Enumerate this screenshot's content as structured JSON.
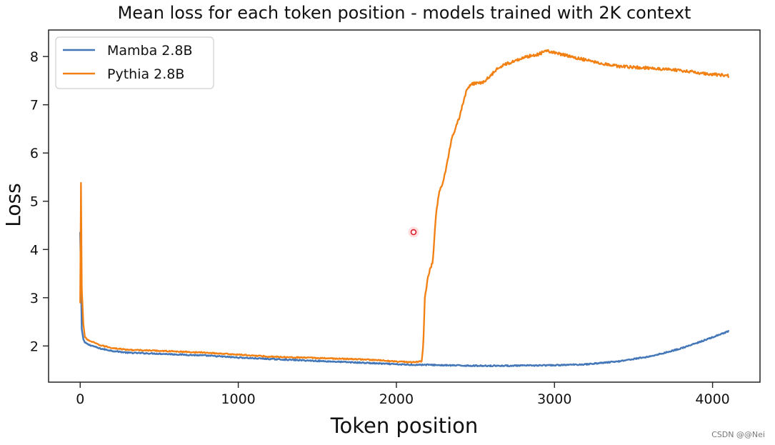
{
  "chart_data": {
    "type": "line",
    "title": "Mean loss for each token position - models trained with 2K context",
    "xlabel": "Token position",
    "ylabel": "Loss",
    "xlim": [
      -200,
      4300
    ],
    "ylim": [
      1.25,
      8.55
    ],
    "xticks": [
      0,
      1000,
      2000,
      3000,
      4000
    ],
    "yticks": [
      2,
      3,
      4,
      5,
      6,
      7,
      8
    ],
    "grid": false,
    "legend_position": "top-left",
    "series": [
      {
        "name": "Mamba 2.8B",
        "color": "#4477b8",
        "x": [
          0,
          10,
          20,
          30,
          50,
          80,
          120,
          200,
          300,
          500,
          800,
          1000,
          1200,
          1500,
          1800,
          2000,
          2100,
          2200,
          2300,
          2500,
          2700,
          3000,
          3200,
          3400,
          3600,
          3700,
          3800,
          3900,
          4000,
          4050,
          4100
        ],
        "y": [
          4.35,
          2.35,
          2.14,
          2.07,
          2.03,
          2.0,
          1.95,
          1.9,
          1.86,
          1.84,
          1.8,
          1.76,
          1.73,
          1.69,
          1.65,
          1.62,
          1.61,
          1.61,
          1.6,
          1.59,
          1.59,
          1.6,
          1.62,
          1.68,
          1.78,
          1.86,
          1.95,
          2.06,
          2.18,
          2.24,
          2.3
        ]
      },
      {
        "name": "Pythia 2.8B",
        "color": "#f28012",
        "x": [
          0,
          5,
          10,
          20,
          30,
          50,
          80,
          120,
          200,
          300,
          500,
          800,
          1000,
          1200,
          1500,
          1800,
          2000,
          2100,
          2160,
          2170,
          2180,
          2200,
          2230,
          2250,
          2270,
          2300,
          2350,
          2400,
          2430,
          2450,
          2470,
          2500,
          2550,
          2600,
          2650,
          2700,
          2800,
          2900,
          2950,
          3000,
          3050,
          3100,
          3200,
          3300,
          3400,
          3500,
          3600,
          3700,
          3800,
          3900,
          4000,
          4100
        ],
        "y": [
          2.9,
          5.38,
          3.2,
          2.45,
          2.18,
          2.12,
          2.08,
          2.02,
          1.96,
          1.92,
          1.9,
          1.86,
          1.82,
          1.78,
          1.75,
          1.72,
          1.68,
          1.66,
          1.68,
          2.0,
          3.0,
          3.45,
          3.75,
          4.7,
          5.2,
          5.45,
          6.3,
          6.75,
          7.15,
          7.35,
          7.42,
          7.45,
          7.47,
          7.62,
          7.78,
          7.85,
          7.98,
          8.05,
          8.12,
          8.08,
          8.04,
          8.0,
          7.93,
          7.86,
          7.8,
          7.78,
          7.76,
          7.74,
          7.71,
          7.67,
          7.63,
          7.6
        ]
      }
    ],
    "annotations": []
  },
  "watermark": "CSDN @@Nei"
}
